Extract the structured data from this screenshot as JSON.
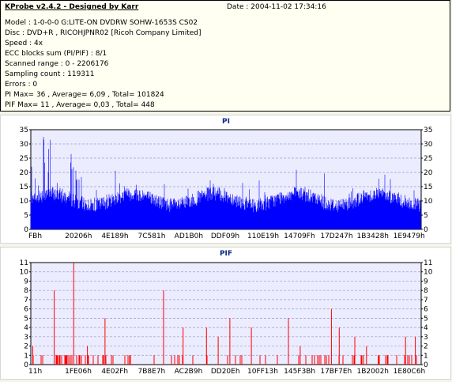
{
  "header": {
    "title": "KProbe v2.4.2 - Designed by Karr",
    "date": "Date : 2004-11-02 17:34:16",
    "lines": [
      "Model : 1-0-0-0 G:LITE-ON DVDRW SOHW-1653S CS02",
      "Disc : DVD+R , RICOHJPNR02 [Ricoh Company Limited]",
      "Speed : 4x",
      "ECC blocks sum (PI/PIF) : 8/1",
      "Scanned range : 0 - 2206176",
      "Sampling count : 119311",
      "Errors : 0",
      "PI Max= 36 , Average= 6,09 , Total= 101824",
      "PIF Max= 11 , Average= 0,03 , Total= 448"
    ]
  },
  "colors": {
    "pi_bar": "#0000ff",
    "pif_bar": "#ff0000",
    "plot_bg": "#ececff",
    "title": "#0a2a8a"
  },
  "chart_data": [
    {
      "type": "bar",
      "title": "PI",
      "ylim": [
        0,
        35
      ],
      "yticks": [
        0,
        5,
        10,
        15,
        20,
        25,
        30,
        35
      ],
      "xticks": [
        "FBh",
        "20206h",
        "4E189h",
        "7C581h",
        "AD1B0h",
        "DDF09h",
        "110E19h",
        "14709Fh",
        "17D247h",
        "1B3428h",
        "1E9479h"
      ],
      "grid": true
    },
    {
      "type": "bar",
      "title": "PIF",
      "ylim": [
        0,
        11
      ],
      "yticks": [
        0,
        1,
        2,
        3,
        4,
        5,
        6,
        7,
        8,
        9,
        10,
        11
      ],
      "xticks": [
        "11h",
        "1FE06h",
        "4E02Fh",
        "7B8E7h",
        "AC2B9h",
        "DD20Eh",
        "10FF13h",
        "145F3Bh",
        "17BF7Eh",
        "1B2002h",
        "1E80C6h"
      ],
      "grid": true
    }
  ]
}
